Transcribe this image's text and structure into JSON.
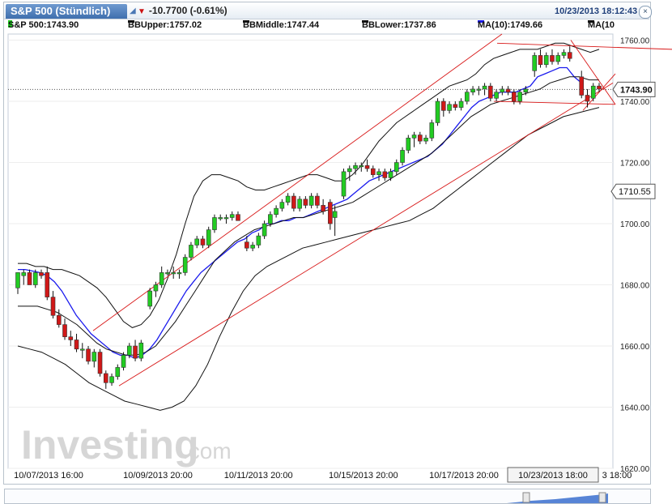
{
  "header": {
    "tab_label": "S&P 500 (Stündlich)",
    "change": "-10.7700 (-0.61%)",
    "datetime": "10/23/2013 18:12:43",
    "close_symbol": "×"
  },
  "legend": {
    "symbol": "S&P 500:1743.90",
    "bb_upper": "BBUpper:1757.02",
    "bb_middle": "BBMiddle:1747.44",
    "bb_lower": "BBLower:1737.86",
    "ma1": "MA(10):1749.66",
    "ma2": "MA(10"
  },
  "watermark": {
    "brand": "Investing",
    "suffix": ".com"
  },
  "colors": {
    "up": "#22cc22",
    "down": "#d01818",
    "ma": "#1a1aee",
    "bollinger": "#111111",
    "trend": "#d81818",
    "grid": "#eeeeee"
  },
  "chart_data": {
    "type": "candlestick",
    "instrument": "S&P 500",
    "interval": "hourly",
    "ylim": [
      1620,
      1762
    ],
    "y_ticks": [
      1620,
      1640,
      1660,
      1680,
      1700,
      1720,
      1740,
      1760
    ],
    "y_tick_labels": [
      "1620.00",
      "1640.00",
      "1660.00",
      "1680.00",
      "1700.00",
      "1720.00",
      "1740.00",
      "1760.00"
    ],
    "x_tick_labels": [
      "10/07/2013 16:00",
      "10/09/2013 20:00",
      "10/11/2013 20:00",
      "10/15/2013 20:00",
      "10/17/2013 20:00",
      "10/23/2013 18:00",
      "3 18:00"
    ],
    "x_tick_index": [
      0,
      25,
      48,
      72,
      95,
      122,
      127
    ],
    "current_price": 1743.9,
    "current_price_label": "1743.90",
    "marker_price": 1710.55,
    "marker_price_label": "1710.55",
    "candles": [
      {
        "o": 1679,
        "h": 1684,
        "l": 1677,
        "c": 1684
      },
      {
        "o": 1683,
        "h": 1685,
        "l": 1680,
        "c": 1684
      },
      {
        "o": 1684,
        "h": 1685,
        "l": 1680,
        "c": 1680
      },
      {
        "o": 1680,
        "h": 1685,
        "l": 1679,
        "c": 1684
      },
      {
        "o": 1684,
        "h": 1685,
        "l": 1682,
        "c": 1683
      },
      {
        "o": 1684,
        "h": 1686,
        "l": 1675,
        "c": 1676
      },
      {
        "o": 1676,
        "h": 1678,
        "l": 1669,
        "c": 1670
      },
      {
        "o": 1670,
        "h": 1672,
        "l": 1666,
        "c": 1667
      },
      {
        "o": 1667,
        "h": 1669,
        "l": 1662,
        "c": 1663
      },
      {
        "o": 1663,
        "h": 1665,
        "l": 1660,
        "c": 1662
      },
      {
        "o": 1662,
        "h": 1664,
        "l": 1658,
        "c": 1659
      },
      {
        "o": 1659,
        "h": 1661,
        "l": 1656,
        "c": 1659
      },
      {
        "o": 1659,
        "h": 1660,
        "l": 1654,
        "c": 1655
      },
      {
        "o": 1655,
        "h": 1659,
        "l": 1653,
        "c": 1658
      },
      {
        "o": 1658,
        "h": 1659,
        "l": 1650,
        "c": 1651
      },
      {
        "o": 1651,
        "h": 1652,
        "l": 1646,
        "c": 1648
      },
      {
        "o": 1648,
        "h": 1651,
        "l": 1647,
        "c": 1650
      },
      {
        "o": 1650,
        "h": 1654,
        "l": 1649,
        "c": 1653
      },
      {
        "o": 1653,
        "h": 1658,
        "l": 1652,
        "c": 1657
      },
      {
        "o": 1657,
        "h": 1661,
        "l": 1656,
        "c": 1660
      },
      {
        "o": 1660,
        "h": 1662,
        "l": 1655,
        "c": 1656
      },
      {
        "o": 1656,
        "h": 1662,
        "l": 1655,
        "c": 1661
      },
      {
        "o": 1673,
        "h": 1679,
        "l": 1672,
        "c": 1678
      },
      {
        "o": 1678,
        "h": 1681,
        "l": 1676,
        "c": 1680
      },
      {
        "o": 1680,
        "h": 1686,
        "l": 1679,
        "c": 1684
      },
      {
        "o": 1684,
        "h": 1685,
        "l": 1683,
        "c": 1684
      },
      {
        "o": 1684,
        "h": 1686,
        "l": 1682,
        "c": 1684
      },
      {
        "o": 1684,
        "h": 1685,
        "l": 1682,
        "c": 1684
      },
      {
        "o": 1684,
        "h": 1690,
        "l": 1683,
        "c": 1689
      },
      {
        "o": 1689,
        "h": 1694,
        "l": 1688,
        "c": 1693
      },
      {
        "o": 1693,
        "h": 1696,
        "l": 1692,
        "c": 1695
      },
      {
        "o": 1695,
        "h": 1696,
        "l": 1692,
        "c": 1693
      },
      {
        "o": 1693,
        "h": 1699,
        "l": 1692,
        "c": 1698
      },
      {
        "o": 1698,
        "h": 1703,
        "l": 1697,
        "c": 1702
      },
      {
        "o": 1702,
        "h": 1703,
        "l": 1701,
        "c": 1702
      },
      {
        "o": 1702,
        "h": 1703,
        "l": 1700,
        "c": 1702
      },
      {
        "o": 1702,
        "h": 1704,
        "l": 1701,
        "c": 1703
      },
      {
        "o": 1703,
        "h": 1704,
        "l": 1701,
        "c": 1701
      },
      {
        "o": 1694,
        "h": 1696,
        "l": 1691,
        "c": 1692
      },
      {
        "o": 1692,
        "h": 1694,
        "l": 1691,
        "c": 1693
      },
      {
        "o": 1693,
        "h": 1697,
        "l": 1692,
        "c": 1696
      },
      {
        "o": 1696,
        "h": 1701,
        "l": 1695,
        "c": 1700
      },
      {
        "o": 1700,
        "h": 1704,
        "l": 1699,
        "c": 1703
      },
      {
        "o": 1703,
        "h": 1706,
        "l": 1702,
        "c": 1705
      },
      {
        "o": 1705,
        "h": 1708,
        "l": 1704,
        "c": 1707
      },
      {
        "o": 1707,
        "h": 1710,
        "l": 1706,
        "c": 1709
      },
      {
        "o": 1709,
        "h": 1710,
        "l": 1704,
        "c": 1705
      },
      {
        "o": 1705,
        "h": 1709,
        "l": 1704,
        "c": 1708
      },
      {
        "o": 1708,
        "h": 1709,
        "l": 1705,
        "c": 1706
      },
      {
        "o": 1706,
        "h": 1710,
        "l": 1705,
        "c": 1709
      },
      {
        "o": 1709,
        "h": 1710,
        "l": 1705,
        "c": 1706
      },
      {
        "o": 1706,
        "h": 1708,
        "l": 1703,
        "c": 1704
      },
      {
        "o": 1707,
        "h": 1708,
        "l": 1698,
        "c": 1700
      },
      {
        "o": 1702,
        "h": 1706,
        "l": 1696,
        "c": 1704
      },
      {
        "o": 1709,
        "h": 1718,
        "l": 1708,
        "c": 1717
      },
      {
        "o": 1717,
        "h": 1719,
        "l": 1714,
        "c": 1718
      },
      {
        "o": 1718,
        "h": 1720,
        "l": 1716,
        "c": 1719
      },
      {
        "o": 1719,
        "h": 1720,
        "l": 1717,
        "c": 1719
      },
      {
        "o": 1719,
        "h": 1721,
        "l": 1717,
        "c": 1718
      },
      {
        "o": 1718,
        "h": 1719,
        "l": 1715,
        "c": 1716
      },
      {
        "o": 1716,
        "h": 1718,
        "l": 1714,
        "c": 1717
      },
      {
        "o": 1717,
        "h": 1718,
        "l": 1714,
        "c": 1715
      },
      {
        "o": 1715,
        "h": 1718,
        "l": 1714,
        "c": 1717
      },
      {
        "o": 1717,
        "h": 1721,
        "l": 1716,
        "c": 1720
      },
      {
        "o": 1720,
        "h": 1725,
        "l": 1719,
        "c": 1724
      },
      {
        "o": 1724,
        "h": 1729,
        "l": 1723,
        "c": 1728
      },
      {
        "o": 1728,
        "h": 1730,
        "l": 1725,
        "c": 1729
      },
      {
        "o": 1729,
        "h": 1730,
        "l": 1726,
        "c": 1727
      },
      {
        "o": 1727,
        "h": 1729,
        "l": 1726,
        "c": 1728
      },
      {
        "o": 1728,
        "h": 1734,
        "l": 1727,
        "c": 1733
      },
      {
        "o": 1733,
        "h": 1741,
        "l": 1732,
        "c": 1740
      },
      {
        "o": 1740,
        "h": 1741,
        "l": 1735,
        "c": 1737
      },
      {
        "o": 1737,
        "h": 1740,
        "l": 1736,
        "c": 1739
      },
      {
        "o": 1739,
        "h": 1740,
        "l": 1737,
        "c": 1738
      },
      {
        "o": 1738,
        "h": 1741,
        "l": 1737,
        "c": 1740
      },
      {
        "o": 1740,
        "h": 1744,
        "l": 1739,
        "c": 1743
      },
      {
        "o": 1743,
        "h": 1745,
        "l": 1742,
        "c": 1744
      },
      {
        "o": 1744,
        "h": 1745,
        "l": 1742,
        "c": 1744
      },
      {
        "o": 1744,
        "h": 1746,
        "l": 1742,
        "c": 1745
      },
      {
        "o": 1745,
        "h": 1746,
        "l": 1740,
        "c": 1741
      },
      {
        "o": 1741,
        "h": 1744,
        "l": 1740,
        "c": 1743
      },
      {
        "o": 1743,
        "h": 1745,
        "l": 1742,
        "c": 1744
      },
      {
        "o": 1744,
        "h": 1745,
        "l": 1742,
        "c": 1743
      },
      {
        "o": 1743,
        "h": 1744,
        "l": 1739,
        "c": 1740
      },
      {
        "o": 1740,
        "h": 1744,
        "l": 1739,
        "c": 1743
      },
      {
        "o": 1743,
        "h": 1745,
        "l": 1742,
        "c": 1744
      },
      {
        "o": 1750,
        "h": 1756,
        "l": 1748,
        "c": 1755
      },
      {
        "o": 1755,
        "h": 1757,
        "l": 1751,
        "c": 1752
      },
      {
        "o": 1752,
        "h": 1756,
        "l": 1751,
        "c": 1755
      },
      {
        "o": 1755,
        "h": 1757,
        "l": 1752,
        "c": 1753
      },
      {
        "o": 1753,
        "h": 1756,
        "l": 1752,
        "c": 1755
      },
      {
        "o": 1755,
        "h": 1757,
        "l": 1754,
        "c": 1756
      },
      {
        "o": 1756,
        "h": 1758,
        "l": 1753,
        "c": 1754
      },
      {
        "o": 1748,
        "h": 1750,
        "l": 1741,
        "c": 1742
      },
      {
        "o": 1742,
        "h": 1744,
        "l": 1738,
        "c": 1740
      },
      {
        "o": 1741,
        "h": 1746,
        "l": 1740,
        "c": 1745
      },
      {
        "o": 1745,
        "h": 1746,
        "l": 1743,
        "c": 1744
      }
    ],
    "candle_x_positions": [
      0,
      1,
      2,
      3,
      4,
      5,
      6,
      7,
      8,
      9,
      10,
      11,
      12,
      13,
      14,
      15,
      16,
      17,
      18,
      19,
      20,
      21,
      22.5,
      23.5,
      24.5,
      25.5,
      26.5,
      27.5,
      28.5,
      29.5,
      30.5,
      31.5,
      32.5,
      33.5,
      34.5,
      35.5,
      36.5,
      37.5,
      39,
      40,
      41,
      42,
      43,
      44,
      45,
      46,
      47,
      48,
      49,
      50,
      51,
      52,
      53.2,
      54,
      55.5,
      56.5,
      57.5,
      58.5,
      59.5,
      60.5,
      61.5,
      62.5,
      63.5,
      64.5,
      65.5,
      66.5,
      67.5,
      68.5,
      69.5,
      70.5,
      71.5,
      72.5,
      73.5,
      74.5,
      75.5,
      76.5,
      77.5,
      78.5,
      79.5,
      80.5,
      81.5,
      82.5,
      83.5,
      84.5,
      85.5,
      86.5,
      88,
      89,
      90,
      91,
      92,
      93,
      94,
      96,
      97,
      98,
      99
    ],
    "series": [
      {
        "name": "MA(10)",
        "values": [
          1685,
          1685,
          1684.5,
          1684,
          1683,
          1681,
          1678,
          1674,
          1670,
          1667,
          1664,
          1662,
          1660,
          1658,
          1657,
          1657,
          1656,
          1657,
          1659,
          1662,
          1666,
          1670,
          1674,
          1678,
          1681,
          1684,
          1686,
          1688,
          1690,
          1692,
          1694,
          1695,
          1697,
          1698,
          1700,
          1700,
          1701,
          1701,
          1702,
          1702,
          1703,
          1704,
          1705,
          1706,
          1707,
          1708,
          1710,
          1712,
          1714,
          1715,
          1716,
          1717,
          1718,
          1719,
          1720,
          1721,
          1722,
          1724,
          1726,
          1729,
          1732,
          1735,
          1738,
          1740,
          1741,
          1742,
          1743,
          1743,
          1743,
          1744,
          1745,
          1748,
          1749,
          1750,
          1751,
          1751,
          1748,
          1746
        ]
      },
      {
        "name": "BBUpper",
        "values": [
          1687,
          1687,
          1686,
          1686,
          1685,
          1685,
          1684,
          1683,
          1681,
          1679,
          1676,
          1672,
          1668,
          1666,
          1667,
          1670,
          1675,
          1682,
          1690,
          1700,
          1709,
          1714,
          1716,
          1716,
          1715,
          1714,
          1712,
          1711,
          1711,
          1712,
          1713,
          1714,
          1715,
          1716,
          1716,
          1715,
          1714,
          1714,
          1716,
          1719,
          1723,
          1727,
          1730,
          1733,
          1735,
          1737,
          1739,
          1741,
          1743,
          1745,
          1746,
          1747,
          1749,
          1752,
          1754,
          1755,
          1756,
          1757,
          1757,
          1757,
          1758,
          1759,
          1759,
          1758,
          1757,
          1756,
          1757
        ]
      },
      {
        "name": "BBMiddle",
        "values": [
          1673,
          1673,
          1673,
          1672,
          1671,
          1669,
          1667,
          1664,
          1661,
          1659,
          1658,
          1657,
          1657,
          1658,
          1660,
          1664,
          1668,
          1673,
          1678,
          1683,
          1688,
          1691,
          1694,
          1696,
          1698,
          1699,
          1700,
          1701,
          1702,
          1702,
          1703,
          1704,
          1705,
          1706,
          1707,
          1709,
          1711,
          1713,
          1715,
          1717,
          1719,
          1721,
          1723,
          1726,
          1729,
          1732,
          1735,
          1737,
          1739,
          1740,
          1741,
          1742,
          1743,
          1744,
          1746,
          1747,
          1748,
          1748,
          1747,
          1747
        ]
      },
      {
        "name": "BBLower",
        "values": [
          1660,
          1659,
          1658,
          1656,
          1654,
          1651,
          1648,
          1646,
          1644,
          1642,
          1641,
          1640,
          1639,
          1640,
          1642,
          1647,
          1654,
          1663,
          1671,
          1678,
          1683,
          1686,
          1688,
          1690,
          1692,
          1693,
          1694,
          1695,
          1696,
          1697,
          1698,
          1699,
          1700,
          1701,
          1703,
          1705,
          1708,
          1711,
          1714,
          1717,
          1720,
          1723,
          1726,
          1729,
          1731,
          1733,
          1735,
          1736,
          1737,
          1738
        ]
      },
      {
        "name": "Upper trendline",
        "values": [
          1665,
          1762
        ]
      },
      {
        "name": "Lower trendline",
        "values": [
          1647,
          1746
        ]
      }
    ]
  }
}
